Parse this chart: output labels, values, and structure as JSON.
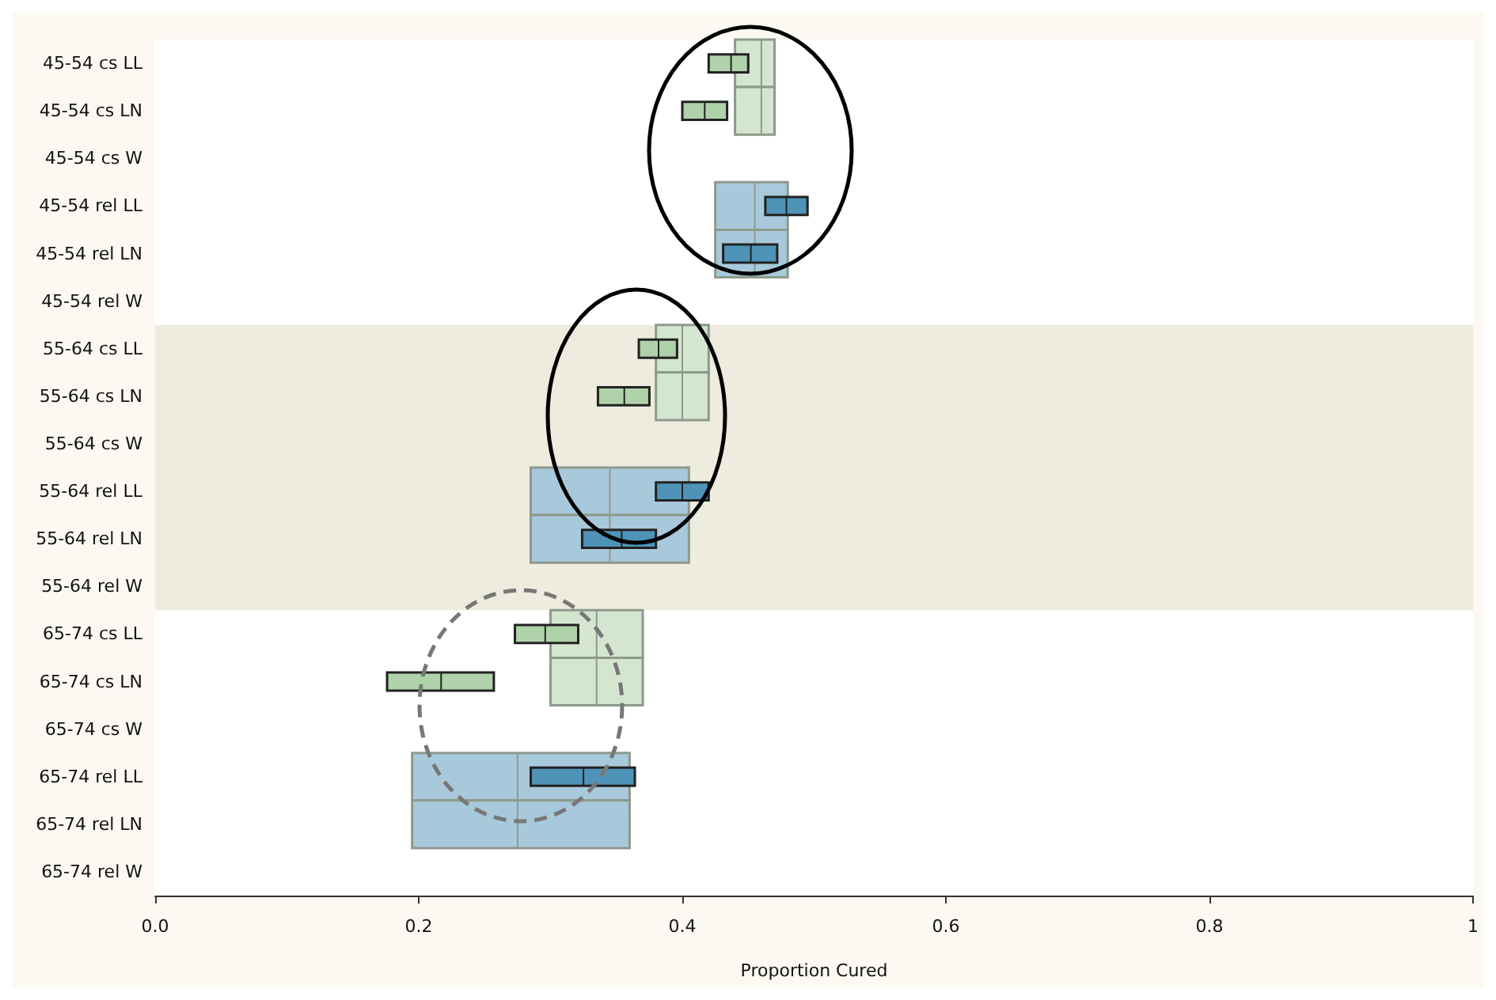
{
  "chart_data": {
    "type": "box",
    "orientation": "horizontal",
    "xlabel": "Proportion Cured",
    "categories": [
      "45-54 cs LL",
      "45-54 cs LN",
      "45-54 cs W",
      "45-54 rel LL",
      "45-54 rel LN",
      "45-54 rel W",
      "55-64 cs LL",
      "55-64 cs LN",
      "55-64 cs W",
      "55-64 rel LL",
      "55-64 rel LN",
      "55-64 rel W",
      "65-74 cs LL",
      "65-74 cs LN",
      "65-74 cs W",
      "65-74 rel LL",
      "65-74 rel LN",
      "65-74 rel W"
    ],
    "xlim": [
      0,
      1
    ],
    "xticks": [
      {
        "value": 0,
        "label": "0.0"
      },
      0.2,
      0.4,
      0.6,
      0.8,
      1
    ],
    "grid": false,
    "bands": [
      {
        "axis": "y",
        "from": "55-64 cs LL",
        "to": "55-64 rel W",
        "color": "#eeebdf"
      }
    ],
    "series": [
      {
        "color": "#d5e6d0",
        "boxes": [
          {
            "low": 0.44,
            "q1": 0.44,
            "median": 0.46,
            "q3": 0.47,
            "high": 0.47
          },
          {
            "low": 0.44,
            "q1": 0.44,
            "median": 0.46,
            "q3": 0.47,
            "high": 0.47
          },
          null,
          null,
          null,
          null,
          {
            "low": 0.38,
            "q1": 0.38,
            "median": 0.4,
            "q3": 0.42,
            "high": 0.42
          },
          {
            "low": 0.38,
            "q1": 0.38,
            "median": 0.4,
            "q3": 0.42,
            "high": 0.42
          },
          null,
          null,
          null,
          null,
          {
            "low": 0.3,
            "q1": 0.3,
            "median": 0.335,
            "q3": 0.37,
            "high": 0.37
          },
          {
            "low": 0.3,
            "q1": 0.3,
            "median": 0.335,
            "q3": 0.37,
            "high": 0.37
          },
          null,
          null,
          null,
          null
        ]
      },
      {
        "color": "#a8c9dc",
        "boxes": [
          null,
          null,
          null,
          {
            "low": 0.425,
            "q1": 0.425,
            "median": 0.455,
            "q3": 0.48,
            "high": 0.48
          },
          {
            "low": 0.425,
            "q1": 0.425,
            "median": 0.455,
            "q3": 0.48,
            "high": 0.48
          },
          null,
          null,
          null,
          null,
          {
            "low": 0.285,
            "q1": 0.285,
            "median": 0.345,
            "q3": 0.405,
            "high": 0.405
          },
          {
            "low": 0.285,
            "q1": 0.285,
            "median": 0.345,
            "q3": 0.405,
            "high": 0.405
          },
          null,
          null,
          null,
          null,
          {
            "low": 0.195,
            "q1": 0.195,
            "median": 0.275,
            "q3": 0.36,
            "high": 0.36
          },
          {
            "low": 0.195,
            "q1": 0.195,
            "median": 0.275,
            "q3": 0.36,
            "high": 0.36
          },
          null
        ]
      },
      {
        "color": "#b0d2ab",
        "boxes": [
          {
            "low": 0.42,
            "q1": 0.42,
            "median": 0.437,
            "q3": 0.45,
            "high": 0.45
          },
          {
            "low": 0.4,
            "q1": 0.4,
            "median": 0.417,
            "q3": 0.434,
            "high": 0.434
          },
          null,
          null,
          null,
          null,
          {
            "low": 0.367,
            "q1": 0.367,
            "median": 0.382,
            "q3": 0.396,
            "high": 0.396
          },
          {
            "low": 0.336,
            "q1": 0.336,
            "median": 0.356,
            "q3": 0.375,
            "high": 0.375
          },
          null,
          null,
          null,
          null,
          {
            "low": 0.273,
            "q1": 0.273,
            "median": 0.296,
            "q3": 0.321,
            "high": 0.321
          },
          {
            "low": 0.176,
            "q1": 0.176,
            "median": 0.217,
            "q3": 0.257,
            "high": 0.257
          },
          null,
          null,
          null,
          null
        ]
      },
      {
        "color": "#4f93b8",
        "boxes": [
          null,
          null,
          null,
          {
            "low": 0.463,
            "q1": 0.463,
            "median": 0.479,
            "q3": 0.495,
            "high": 0.495
          },
          {
            "low": 0.431,
            "q1": 0.431,
            "median": 0.452,
            "q3": 0.472,
            "high": 0.472
          },
          null,
          null,
          null,
          null,
          {
            "low": 0.38,
            "q1": 0.38,
            "median": 0.4,
            "q3": 0.42,
            "high": 0.42
          },
          {
            "low": 0.324,
            "q1": 0.324,
            "median": 0.354,
            "q3": 0.38,
            "high": 0.38
          },
          null,
          null,
          null,
          null,
          {
            "low": 0.285,
            "q1": 0.285,
            "median": 0.325,
            "q3": 0.364,
            "high": 0.364
          },
          null,
          null
        ]
      }
    ]
  }
}
